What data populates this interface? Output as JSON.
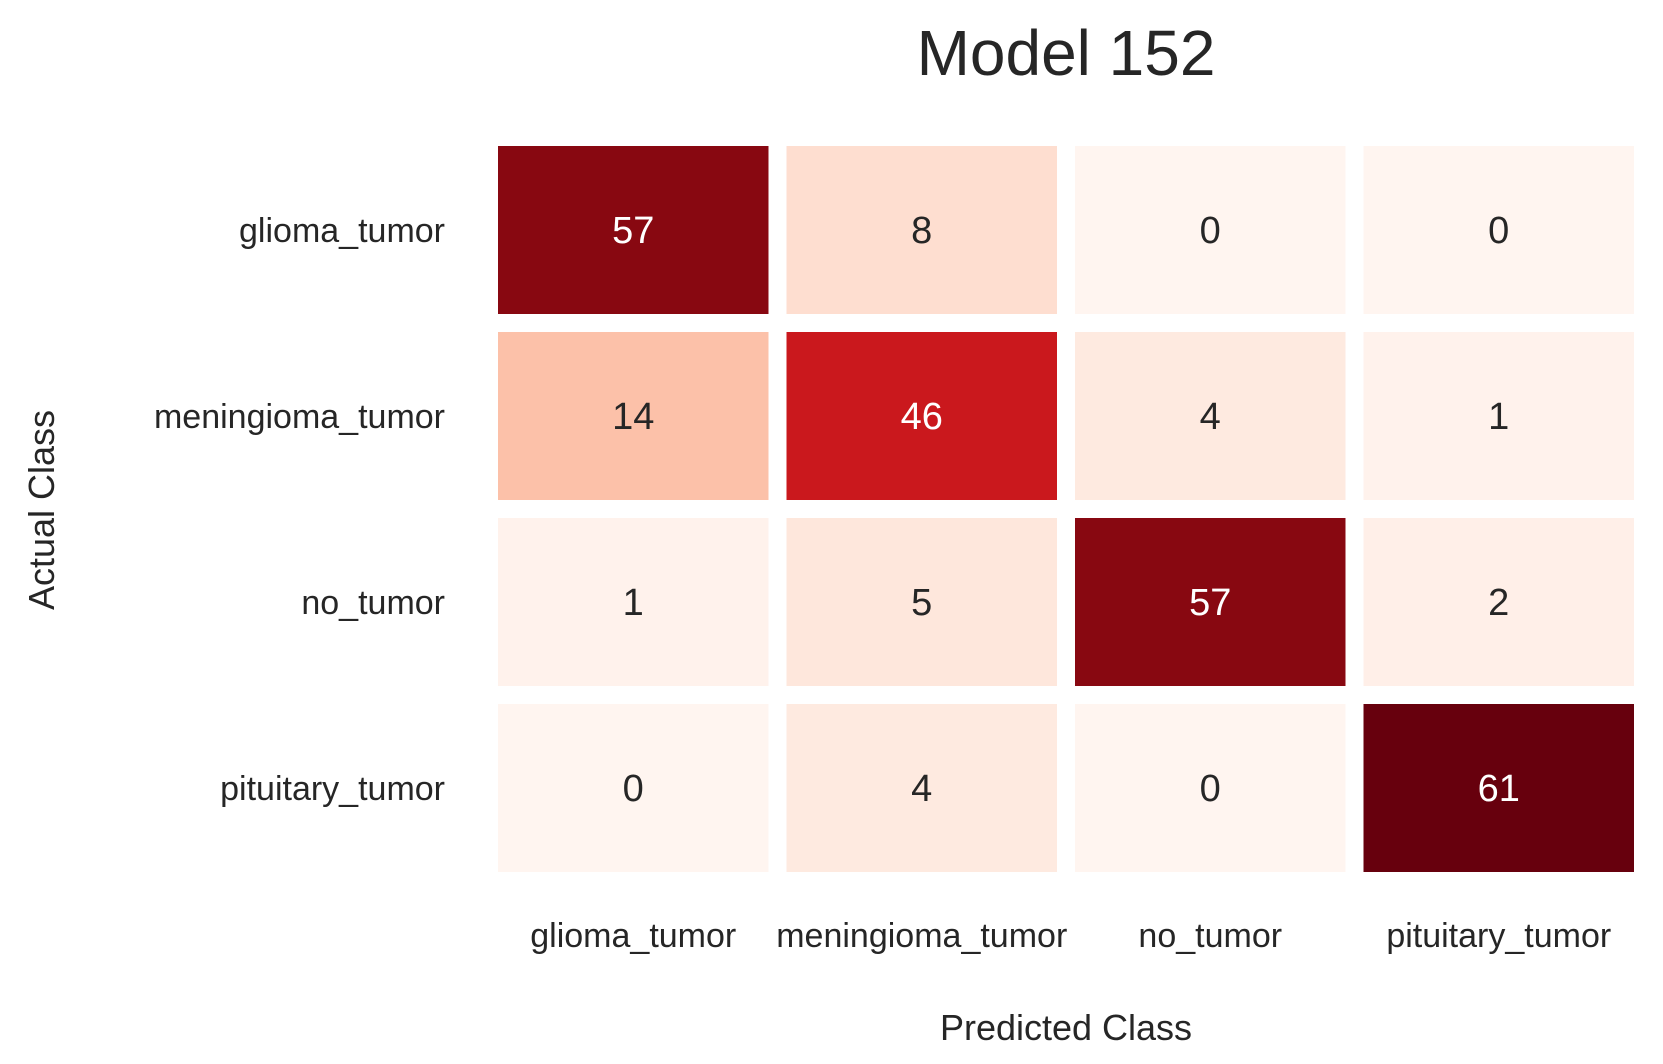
{
  "chart_data": {
    "type": "heatmap",
    "title": "Model 152",
    "xlabel": "Predicted Class",
    "ylabel": "Actual Class",
    "x_categories": [
      "glioma_tumor",
      "meningioma_tumor",
      "no_tumor",
      "pituitary_tumor"
    ],
    "y_categories": [
      "glioma_tumor",
      "meningioma_tumor",
      "no_tumor",
      "pituitary_tumor"
    ],
    "values": [
      [
        57,
        8,
        0,
        0
      ],
      [
        14,
        46,
        4,
        1
      ],
      [
        1,
        5,
        57,
        2
      ],
      [
        0,
        4,
        0,
        61
      ]
    ],
    "colormap": "Reds",
    "colorbar": false,
    "annotated": true
  }
}
